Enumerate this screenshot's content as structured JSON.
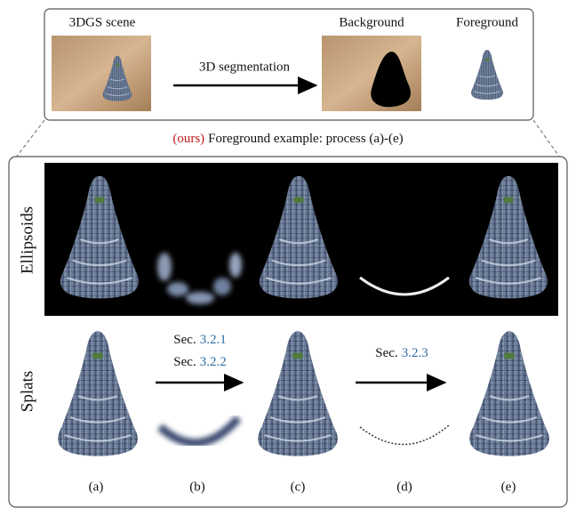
{
  "top_panel": {
    "labels": [
      "3DGS scene",
      "Background",
      "Foreground"
    ],
    "arrow_label": "3D segmentation"
  },
  "caption": {
    "tag": "(ours)",
    "text": "Foreground example: process (a)-(e)"
  },
  "rows": [
    "Ellipsoids",
    "Splats"
  ],
  "steps": [
    {
      "prefix": "Sec.",
      "ref": "3.2.1"
    },
    {
      "prefix": "Sec.",
      "ref": "3.2.2"
    },
    {
      "prefix": "Sec.",
      "ref": "3.2.3"
    }
  ],
  "panels": [
    "(a)",
    "(b)",
    "(c)",
    "(d)",
    "(e)"
  ]
}
